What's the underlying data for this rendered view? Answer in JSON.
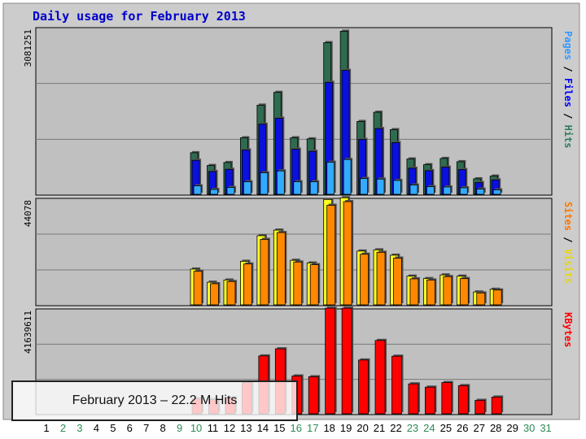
{
  "caption": "February 2013 – 22.2 M Hits",
  "chart_data": {
    "type": "bar",
    "title": "Daily usage for February 2013",
    "categories": [
      "1",
      "2",
      "3",
      "4",
      "5",
      "6",
      "7",
      "8",
      "9",
      "10",
      "11",
      "12",
      "13",
      "14",
      "15",
      "16",
      "17",
      "18",
      "19",
      "20",
      "21",
      "22",
      "23",
      "24",
      "25",
      "26",
      "27",
      "28",
      "29",
      "30",
      "31"
    ],
    "weekend_days": [
      "2",
      "3",
      "9",
      "10",
      "16",
      "17",
      "23",
      "24",
      "30",
      "31"
    ],
    "panels": [
      {
        "name": "hits-files-pages",
        "max_label": "3081251",
        "ymax": 3081251,
        "side_labels": [
          {
            "text": "Pages",
            "color": "#3399ff"
          },
          {
            "text": " / ",
            "color": "#000000"
          },
          {
            "text": "Files",
            "color": "#0000ff"
          },
          {
            "text": " / ",
            "color": "#000000"
          },
          {
            "text": "Hits",
            "color": "#2e7d5b"
          }
        ],
        "series": [
          {
            "name": "Hits",
            "color": "#2e6b4f",
            "values": [
              null,
              null,
              null,
              null,
              null,
              null,
              null,
              null,
              null,
              765000,
              530000,
              585000,
              1040000,
              1640000,
              1875000,
              1040000,
              1020000,
              2790000,
              3000000,
              1340000,
              1510000,
              1190000,
              650000,
              545000,
              660000,
              600000,
              285000,
              335000,
              null,
              null,
              null
            ]
          },
          {
            "name": "Files",
            "color": "#0a10dd",
            "values": [
              null,
              null,
              null,
              null,
              null,
              null,
              null,
              null,
              null,
              625000,
              420000,
              460000,
              815000,
              1290000,
              1400000,
              830000,
              790000,
              2060000,
              2280000,
              1010000,
              1210000,
              950000,
              480000,
              435000,
              500000,
              455000,
              215000,
              265000,
              null,
              null,
              null
            ]
          },
          {
            "name": "Pages",
            "color": "#33aaff",
            "values": [
              null,
              null,
              null,
              null,
              null,
              null,
              null,
              null,
              null,
              155000,
              90000,
              125000,
              230000,
              395000,
              430000,
              230000,
              230000,
              590000,
              640000,
              290000,
              280000,
              255000,
              170000,
              140000,
              135000,
              120000,
              95000,
              80000,
              null,
              null,
              null
            ]
          }
        ]
      },
      {
        "name": "visits-sites",
        "max_label": "44078",
        "ymax": 44078,
        "side_labels": [
          {
            "text": "Sites",
            "color": "#ff7700"
          },
          {
            "text": " / ",
            "color": "#000000"
          },
          {
            "text": "Visits",
            "color": "#e8d800"
          }
        ],
        "series": [
          {
            "name": "Visits",
            "color": "#ffff22",
            "values": [
              null,
              null,
              null,
              null,
              null,
              null,
              null,
              null,
              null,
              14700,
              9300,
              10200,
              17900,
              28400,
              30700,
              18300,
              17200,
              43300,
              44000,
              22100,
              22600,
              20400,
              11800,
              10800,
              12300,
              11800,
              5300,
              6400,
              null,
              null,
              null
            ]
          },
          {
            "name": "Sites",
            "color": "#ff8800",
            "values": [
              null,
              null,
              null,
              null,
              null,
              null,
              null,
              null,
              null,
              13800,
              8700,
              9600,
              16800,
              26900,
              29700,
              17600,
              16500,
              40900,
              42400,
              20800,
              21600,
              19200,
              10700,
              10200,
              11600,
              10800,
              4900,
              6100,
              null,
              null,
              null
            ]
          }
        ]
      },
      {
        "name": "kbytes",
        "max_label": "41639611",
        "ymax": 41639611,
        "side_labels": [
          {
            "text": "KBytes",
            "color": "#ff0000"
          }
        ],
        "series": [
          {
            "name": "KBytes",
            "color": "#ff0000",
            "values": [
              null,
              null,
              null,
              null,
              null,
              null,
              null,
              null,
              null,
              5900000,
              5600000,
              6300000,
              12300000,
              22800000,
              25600000,
              14900000,
              14600000,
              41600000,
              41600000,
              21200000,
              28900000,
              22700000,
              11800000,
              10500000,
              12300000,
              11100000,
              5300000,
              6600000,
              null,
              null,
              null
            ]
          }
        ]
      }
    ]
  }
}
